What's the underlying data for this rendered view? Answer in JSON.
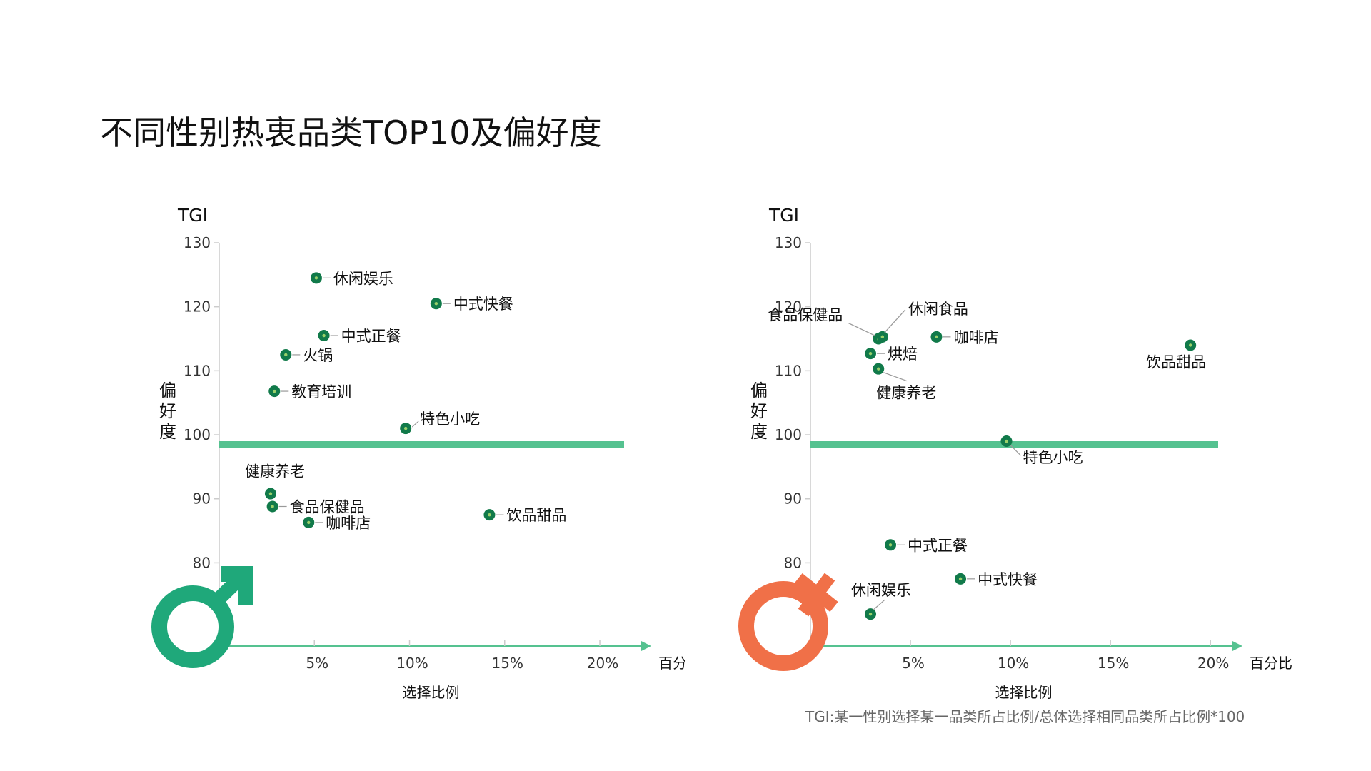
{
  "title": "不同性别热衷品类TOP10及偏好度",
  "footnote": "TGI:某一性别选择某一品类所占比例/总体选择相同品类所占比例*100",
  "colors": {
    "male_symbol": "#1fa87a",
    "female_symbol": "#f07048",
    "point_fill": "#117a4a",
    "point_dot": "#9ad06a",
    "baseline": "#55c290",
    "axis": "#55c290",
    "tick": "#cccccc"
  },
  "chart_data": [
    {
      "type": "scatter",
      "gender": "male",
      "symbol_icon": "male-symbol-icon",
      "ylabel_top": "TGI",
      "ylabel_side": "偏好度",
      "xlabel": "选择比例",
      "xunit": "百分比",
      "xlim": [
        0,
        21.5
      ],
      "ylim": [
        67,
        130
      ],
      "xticks": [
        "5%",
        "10%",
        "15%",
        "20%"
      ],
      "xtick_values": [
        5,
        10,
        15,
        20
      ],
      "yticks": [
        "130",
        "120",
        "110",
        "100",
        "90",
        "80"
      ],
      "ytick_values": [
        130,
        120,
        110,
        100,
        90,
        80
      ],
      "baseline": 98.5,
      "points": [
        {
          "label": "休闲娱乐",
          "x": 5.1,
          "y": 124.5,
          "lpos": "right"
        },
        {
          "label": "中式快餐",
          "x": 11.4,
          "y": 120.5,
          "lpos": "right"
        },
        {
          "label": "中式正餐",
          "x": 5.5,
          "y": 115.5,
          "lpos": "right"
        },
        {
          "label": "火锅",
          "x": 3.5,
          "y": 112.5,
          "lpos": "right"
        },
        {
          "label": "教育培训",
          "x": 2.9,
          "y": 106.8,
          "lpos": "right"
        },
        {
          "label": "特色小吃",
          "x": 9.8,
          "y": 101.0,
          "lpos": "right-up"
        },
        {
          "label": "健康养老",
          "x": 2.7,
          "y": 90.8,
          "lpos": "above"
        },
        {
          "label": "食品保健品",
          "x": 2.8,
          "y": 88.8,
          "lpos": "right"
        },
        {
          "label": "咖啡店",
          "x": 4.7,
          "y": 86.3,
          "lpos": "right"
        },
        {
          "label": "饮品甜品",
          "x": 14.2,
          "y": 87.5,
          "lpos": "right"
        }
      ]
    },
    {
      "type": "scatter",
      "gender": "female",
      "symbol_icon": "female-symbol-icon",
      "ylabel_top": "TGI",
      "ylabel_side": "偏好度",
      "xlabel": "选择比例",
      "xunit": "百分比",
      "xlim": [
        0,
        20.6
      ],
      "ylim": [
        67,
        130
      ],
      "xticks": [
        "5%",
        "10%",
        "15%",
        "20%"
      ],
      "xtick_values": [
        5,
        10,
        15,
        20
      ],
      "yticks": [
        "130",
        "120",
        "110",
        "100",
        "90",
        "80"
      ],
      "ytick_values": [
        130,
        120,
        110,
        100,
        90,
        80
      ],
      "baseline": 98.5,
      "points": [
        {
          "label": "食品保健品",
          "x": 3.4,
          "y": 115.0,
          "lpos": "leader-ul"
        },
        {
          "label": "休闲食品",
          "x": 3.6,
          "y": 115.3,
          "lpos": "leader-ur"
        },
        {
          "label": "咖啡店",
          "x": 6.3,
          "y": 115.3,
          "lpos": "right"
        },
        {
          "label": "烘焙",
          "x": 3.0,
          "y": 112.7,
          "lpos": "right"
        },
        {
          "label": "健康养老",
          "x": 3.4,
          "y": 110.3,
          "lpos": "below-leader"
        },
        {
          "label": "饮品甜品",
          "x": 19.0,
          "y": 114.0,
          "lpos": "below-left"
        },
        {
          "label": "特色小吃",
          "x": 9.8,
          "y": 99.0,
          "lpos": "below-right"
        },
        {
          "label": "中式正餐",
          "x": 4.0,
          "y": 82.8,
          "lpos": "right"
        },
        {
          "label": "中式快餐",
          "x": 7.5,
          "y": 77.5,
          "lpos": "right"
        },
        {
          "label": "休闲娱乐",
          "x": 3.0,
          "y": 72.0,
          "lpos": "above-leader"
        }
      ]
    }
  ]
}
